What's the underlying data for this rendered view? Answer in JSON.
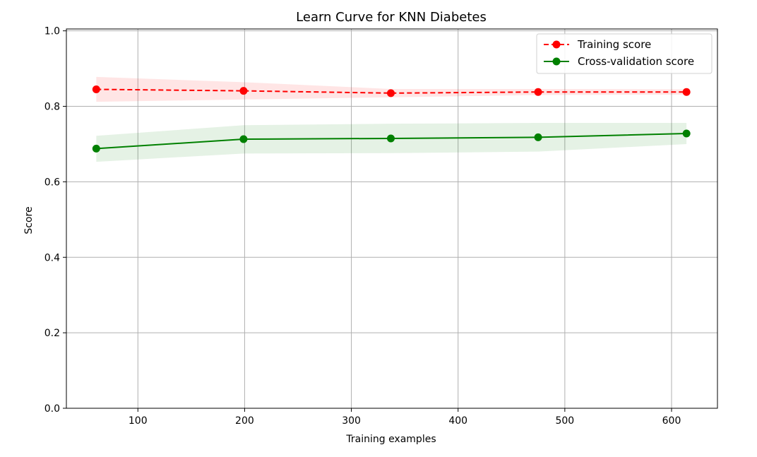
{
  "chart_data": {
    "type": "line",
    "title": "Learn Curve for KNN Diabetes",
    "xlabel": "Training examples",
    "ylabel": "Score",
    "xlim": [
      33,
      643
    ],
    "ylim": [
      0.0,
      1.005
    ],
    "xticks": [
      100,
      200,
      300,
      400,
      500,
      600
    ],
    "xtick_labels": [
      "100",
      "200",
      "300",
      "400",
      "500",
      "600"
    ],
    "yticks": [
      0.0,
      0.2,
      0.4,
      0.6,
      0.8,
      1.0
    ],
    "ytick_labels": [
      "0.0",
      "0.2",
      "0.4",
      "0.6",
      "0.8",
      "1.0"
    ],
    "grid": true,
    "legend_position": "upper right",
    "x": [
      61,
      199,
      337,
      475,
      614
    ],
    "series": [
      {
        "name": "Training score",
        "color": "#ff0000",
        "line_style": "dashed",
        "marker": "circle",
        "values": [
          0.845,
          0.841,
          0.835,
          0.838,
          0.838
        ],
        "band_lower": [
          0.812,
          0.818,
          0.824,
          0.83,
          0.831
        ],
        "band_upper": [
          0.878,
          0.864,
          0.846,
          0.846,
          0.845
        ],
        "band_color": "#ff0000"
      },
      {
        "name": "Cross-validation score",
        "color": "#008000",
        "line_style": "solid",
        "marker": "circle",
        "values": [
          0.688,
          0.713,
          0.715,
          0.718,
          0.728
        ],
        "band_lower": [
          0.653,
          0.675,
          0.676,
          0.68,
          0.7
        ],
        "band_upper": [
          0.722,
          0.75,
          0.754,
          0.756,
          0.756
        ],
        "band_color": "#008000"
      }
    ]
  }
}
